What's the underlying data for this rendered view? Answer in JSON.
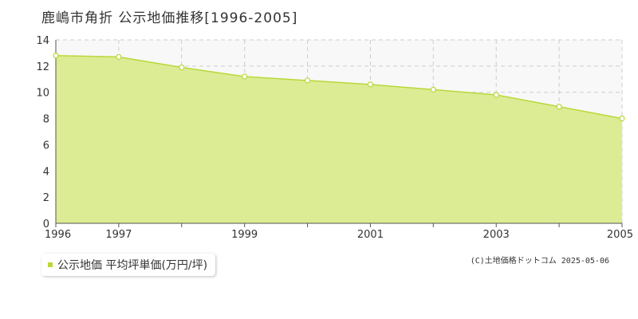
{
  "title": "鹿嶋市角折 公示地価推移[1996-2005]",
  "legend": {
    "label": "公示地価 平均坪単価(万円/坪)"
  },
  "credit": "(C)土地価格ドットコム 2025-05-06",
  "colors": {
    "fill": "#dcec94",
    "line": "#b8d83a",
    "plot_bg": "#f8f8f8",
    "grid": "#cccccc",
    "axis": "#555555"
  },
  "chart_data": {
    "type": "area",
    "title": "鹿嶋市角折 公示地価推移[1996-2005]",
    "xlabel": "",
    "ylabel": "",
    "x": [
      1996,
      1997,
      1998,
      1999,
      2000,
      2001,
      2002,
      2003,
      2004,
      2005
    ],
    "series": [
      {
        "name": "公示地価 平均坪単価(万円/坪)",
        "values": [
          12.8,
          12.7,
          11.9,
          11.2,
          10.9,
          10.6,
          10.2,
          9.8,
          8.9,
          8.0
        ]
      }
    ],
    "ylim": [
      0,
      14
    ],
    "yticks": [
      0,
      2,
      4,
      6,
      8,
      10,
      12,
      14
    ],
    "xlim": [
      1996,
      2005
    ],
    "xtick_labels": [
      "1996",
      "1997",
      "1999",
      "2001",
      "2003",
      "2005"
    ],
    "grid": true
  }
}
